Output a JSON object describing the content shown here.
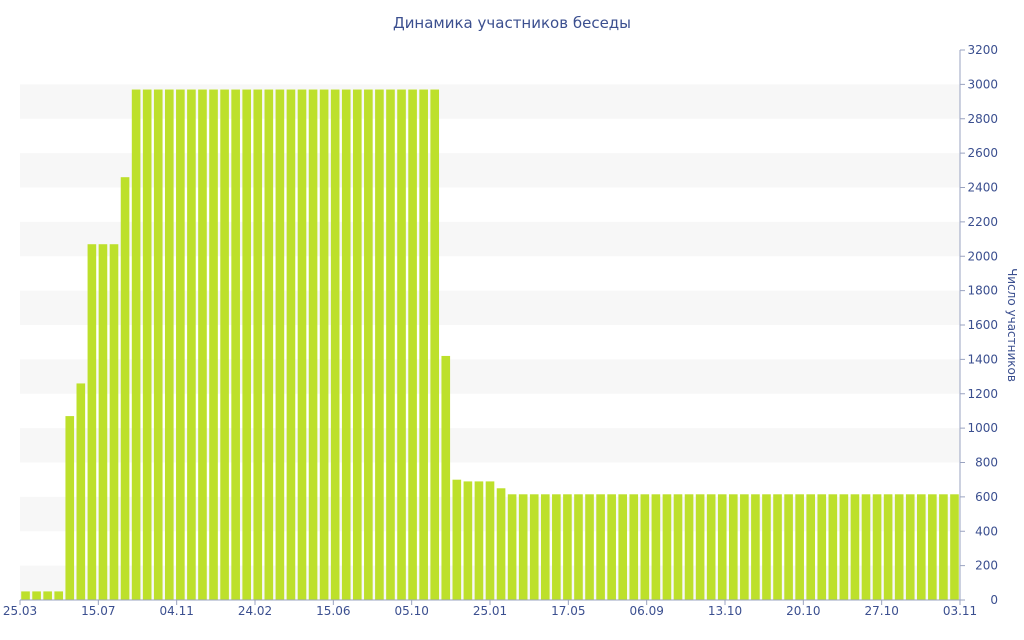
{
  "chart_data": {
    "type": "bar",
    "title": "Динамика участников беседы",
    "ylabel": "Число участников",
    "xlabel": "",
    "ylim": [
      0,
      3200
    ],
    "y_ticks": [
      0,
      200,
      400,
      600,
      800,
      1000,
      1200,
      1400,
      1600,
      1800,
      2000,
      2200,
      2400,
      2600,
      2800,
      3000,
      3200
    ],
    "x_tick_labels": [
      "25.03",
      "15.07",
      "04.11",
      "24.02",
      "15.06",
      "05.10",
      "25.01",
      "17.05",
      "06.09",
      "13.10",
      "20.10",
      "27.10",
      "03.11"
    ],
    "y_axis_side": "right",
    "grid": "horizontal bands",
    "bar_color": "#bde02b",
    "band_color": "#f7f7f7",
    "text_color": "#3b4f8f",
    "values": [
      50,
      50,
      50,
      50,
      1070,
      1260,
      2070,
      2070,
      2070,
      2460,
      2970,
      2970,
      2970,
      2970,
      2970,
      2970,
      2970,
      2970,
      2970,
      2970,
      2970,
      2970,
      2970,
      2970,
      2970,
      2970,
      2970,
      2970,
      2970,
      2970,
      2970,
      2970,
      2970,
      2970,
      2970,
      2970,
      2970,
      2970,
      1420,
      700,
      690,
      690,
      690,
      650,
      615,
      615,
      615,
      615,
      615,
      615,
      615,
      615,
      615,
      615,
      615,
      615,
      615,
      615,
      615,
      615,
      615,
      615,
      615,
      615,
      615,
      615,
      615,
      615,
      615,
      615,
      615,
      615,
      615,
      615,
      615,
      615,
      615,
      615,
      615,
      615,
      615,
      615,
      615,
      615,
      615
    ]
  }
}
